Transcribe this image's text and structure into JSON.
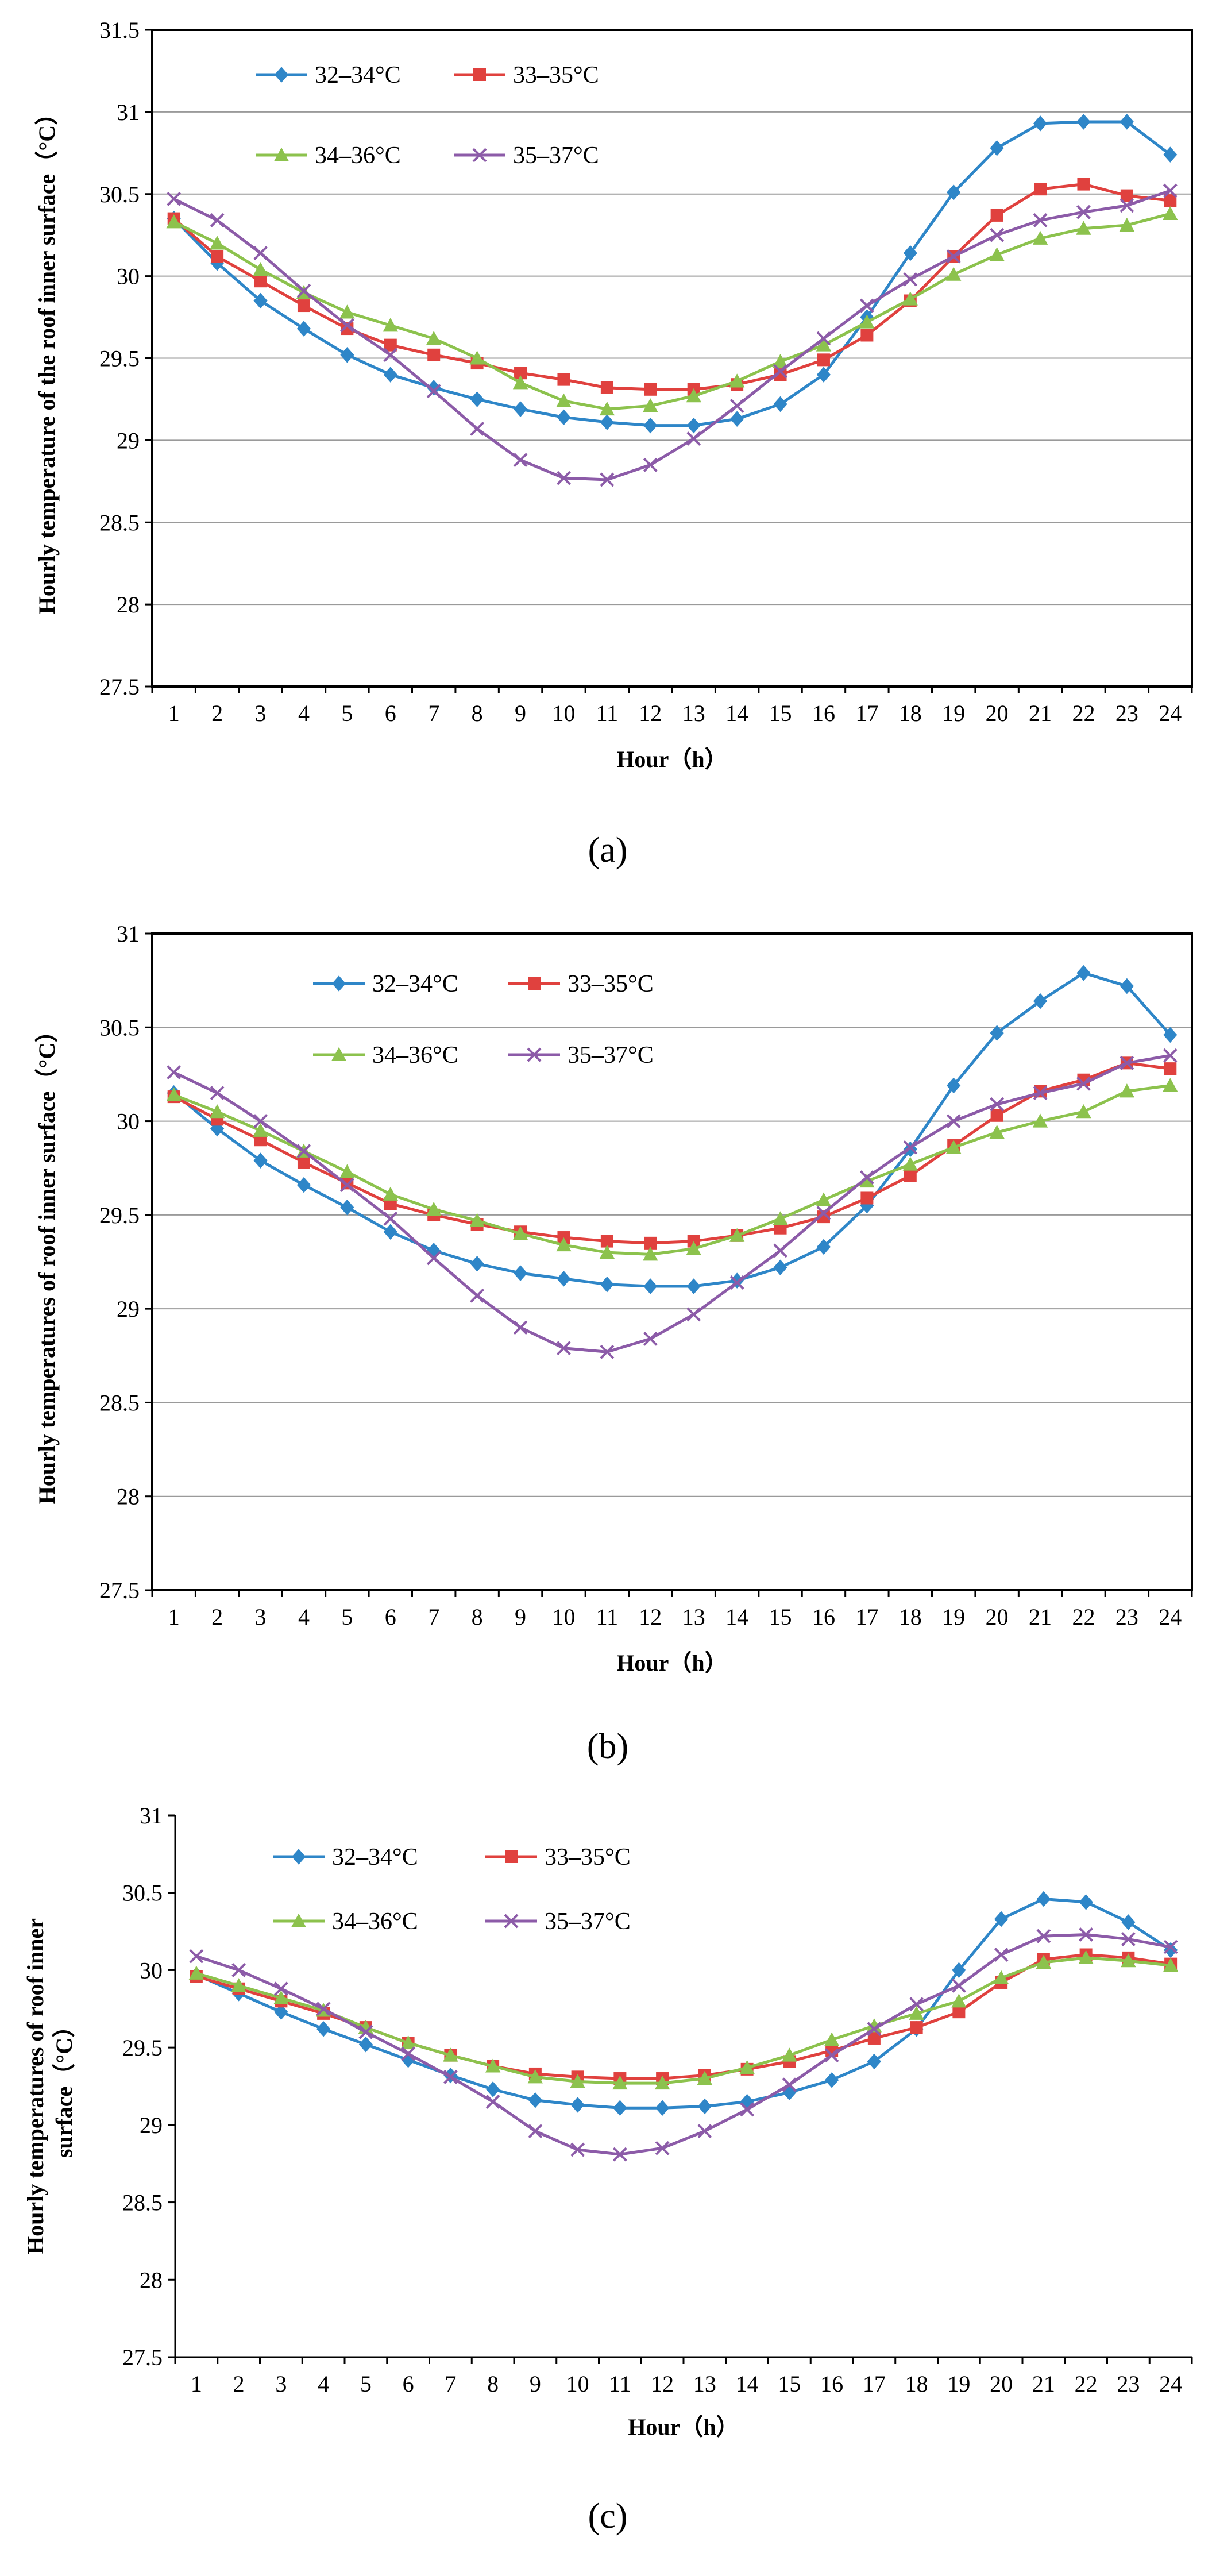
{
  "colors": {
    "s1": "#2E86C8",
    "s2": "#E0413E",
    "s3": "#8CC24D",
    "s4": "#8C5BA8",
    "grid": "#9A9A9A",
    "axis": "#000000"
  },
  "chart_data": [
    {
      "type": "line",
      "panel_label": "(a)",
      "xlabel": "Hour（h）",
      "ylabel": "Hourly temperature of the roof inner surface（°C）",
      "ylim": [
        27.5,
        31.5
      ],
      "yticks": [
        "27.5",
        "28",
        "28.5",
        "29",
        "29.5",
        "30",
        "30.5",
        "31",
        "31.5"
      ],
      "x": [
        "1",
        "2",
        "3",
        "4",
        "5",
        "6",
        "7",
        "8",
        "9",
        "10",
        "11",
        "12",
        "13",
        "14",
        "15",
        "16",
        "17",
        "18",
        "19",
        "20",
        "21",
        "22",
        "23",
        "24"
      ],
      "grid": true,
      "legend_position": "top-left",
      "series": [
        {
          "name": "32–34°C",
          "marker": "diamond",
          "values": [
            30.35,
            30.08,
            29.85,
            29.68,
            29.52,
            29.4,
            29.32,
            29.25,
            29.19,
            29.14,
            29.11,
            29.09,
            29.09,
            29.13,
            29.22,
            29.4,
            29.75,
            30.14,
            30.51,
            30.78,
            30.93,
            30.94,
            30.94,
            30.74
          ]
        },
        {
          "name": "33–35°C",
          "marker": "square",
          "values": [
            30.35,
            30.12,
            29.97,
            29.82,
            29.68,
            29.58,
            29.52,
            29.47,
            29.41,
            29.37,
            29.32,
            29.31,
            29.31,
            29.34,
            29.4,
            29.49,
            29.64,
            29.85,
            30.12,
            30.37,
            30.53,
            30.56,
            30.49,
            30.46
          ]
        },
        {
          "name": "34–36°C",
          "marker": "triangle",
          "values": [
            30.33,
            30.2,
            30.04,
            29.9,
            29.78,
            29.7,
            29.62,
            29.5,
            29.35,
            29.24,
            29.19,
            29.21,
            29.27,
            29.36,
            29.48,
            29.58,
            29.72,
            29.86,
            30.01,
            30.13,
            30.23,
            30.29,
            30.31,
            30.38
          ]
        },
        {
          "name": "35–37°C",
          "marker": "x",
          "values": [
            30.47,
            30.34,
            30.14,
            29.91,
            29.7,
            29.52,
            29.3,
            29.07,
            28.88,
            28.77,
            28.76,
            28.85,
            29.01,
            29.21,
            29.42,
            29.62,
            29.82,
            29.98,
            30.12,
            30.25,
            30.34,
            30.39,
            30.43,
            30.52
          ]
        }
      ]
    },
    {
      "type": "line",
      "panel_label": "(b)",
      "xlabel": "Hour（h）",
      "ylabel": "Hourly temperatures of roof inner surface（°C）",
      "ylim": [
        27.5,
        31
      ],
      "yticks": [
        "27.5",
        "28",
        "28.5",
        "29",
        "29.5",
        "30",
        "30.5",
        "31"
      ],
      "x": [
        "1",
        "2",
        "3",
        "4",
        "5",
        "6",
        "7",
        "8",
        "9",
        "10",
        "11",
        "12",
        "13",
        "14",
        "15",
        "16",
        "17",
        "18",
        "19",
        "20",
        "21",
        "22",
        "23",
        "24"
      ],
      "grid": true,
      "legend_position": "top-left",
      "series": [
        {
          "name": "32–34°C",
          "marker": "diamond",
          "values": [
            30.15,
            29.96,
            29.79,
            29.66,
            29.54,
            29.41,
            29.31,
            29.24,
            29.19,
            29.16,
            29.13,
            29.12,
            29.12,
            29.15,
            29.22,
            29.33,
            29.55,
            29.85,
            30.19,
            30.47,
            30.64,
            30.79,
            30.72,
            30.46
          ]
        },
        {
          "name": "33–35°C",
          "marker": "square",
          "values": [
            30.13,
            30.01,
            29.9,
            29.78,
            29.67,
            29.56,
            29.5,
            29.45,
            29.41,
            29.38,
            29.36,
            29.35,
            29.36,
            29.39,
            29.43,
            29.49,
            29.59,
            29.71,
            29.87,
            30.03,
            30.16,
            30.22,
            30.31,
            30.28
          ]
        },
        {
          "name": "34–36°C",
          "marker": "triangle",
          "values": [
            30.14,
            30.05,
            29.95,
            29.84,
            29.73,
            29.61,
            29.53,
            29.47,
            29.4,
            29.34,
            29.3,
            29.29,
            29.32,
            29.39,
            29.48,
            29.58,
            29.68,
            29.77,
            29.86,
            29.94,
            30.0,
            30.05,
            30.16,
            30.19
          ]
        },
        {
          "name": "35–37°C",
          "marker": "x",
          "values": [
            30.26,
            30.15,
            30.0,
            29.84,
            29.66,
            29.48,
            29.27,
            29.07,
            28.9,
            28.79,
            28.77,
            28.84,
            28.97,
            29.14,
            29.31,
            29.51,
            29.7,
            29.86,
            30.0,
            30.09,
            30.15,
            30.2,
            30.31,
            30.35
          ]
        }
      ]
    },
    {
      "type": "line",
      "panel_label": "(c)",
      "xlabel": "Hour（h）",
      "ylabel_lines": [
        "Hourly temperatures of roof inner",
        "surface（°C）"
      ],
      "ylim": [
        27.5,
        31
      ],
      "yticks": [
        "27.5",
        "28",
        "28.5",
        "29",
        "29.5",
        "30",
        "30.5",
        "31"
      ],
      "x": [
        "1",
        "2",
        "3",
        "4",
        "5",
        "6",
        "7",
        "8",
        "9",
        "10",
        "11",
        "12",
        "13",
        "14",
        "15",
        "16",
        "17",
        "18",
        "19",
        "20",
        "21",
        "22",
        "23",
        "24"
      ],
      "grid": false,
      "legend_position": "top-left",
      "series": [
        {
          "name": "32–34°C",
          "marker": "diamond",
          "values": [
            29.97,
            29.85,
            29.73,
            29.62,
            29.52,
            29.42,
            29.32,
            29.23,
            29.16,
            29.13,
            29.11,
            29.11,
            29.12,
            29.15,
            29.21,
            29.29,
            29.41,
            29.62,
            30.0,
            30.33,
            30.46,
            30.44,
            30.31,
            30.13
          ]
        },
        {
          "name": "33–35°C",
          "marker": "square",
          "values": [
            29.96,
            29.88,
            29.8,
            29.72,
            29.63,
            29.53,
            29.45,
            29.38,
            29.33,
            29.31,
            29.3,
            29.3,
            29.32,
            29.36,
            29.41,
            29.48,
            29.56,
            29.63,
            29.73,
            29.92,
            30.07,
            30.1,
            30.08,
            30.04
          ]
        },
        {
          "name": "34–36°C",
          "marker": "triangle",
          "values": [
            29.98,
            29.9,
            29.82,
            29.74,
            29.63,
            29.53,
            29.45,
            29.38,
            29.31,
            29.28,
            29.27,
            29.27,
            29.3,
            29.37,
            29.45,
            29.55,
            29.64,
            29.72,
            29.8,
            29.95,
            30.05,
            30.08,
            30.06,
            30.03
          ]
        },
        {
          "name": "35–37°C",
          "marker": "x",
          "values": [
            30.09,
            30.0,
            29.88,
            29.75,
            29.6,
            29.46,
            29.31,
            29.15,
            28.96,
            28.84,
            28.81,
            28.85,
            28.96,
            29.1,
            29.26,
            29.45,
            29.62,
            29.78,
            29.9,
            30.1,
            30.22,
            30.23,
            30.2,
            30.15
          ]
        }
      ]
    }
  ]
}
